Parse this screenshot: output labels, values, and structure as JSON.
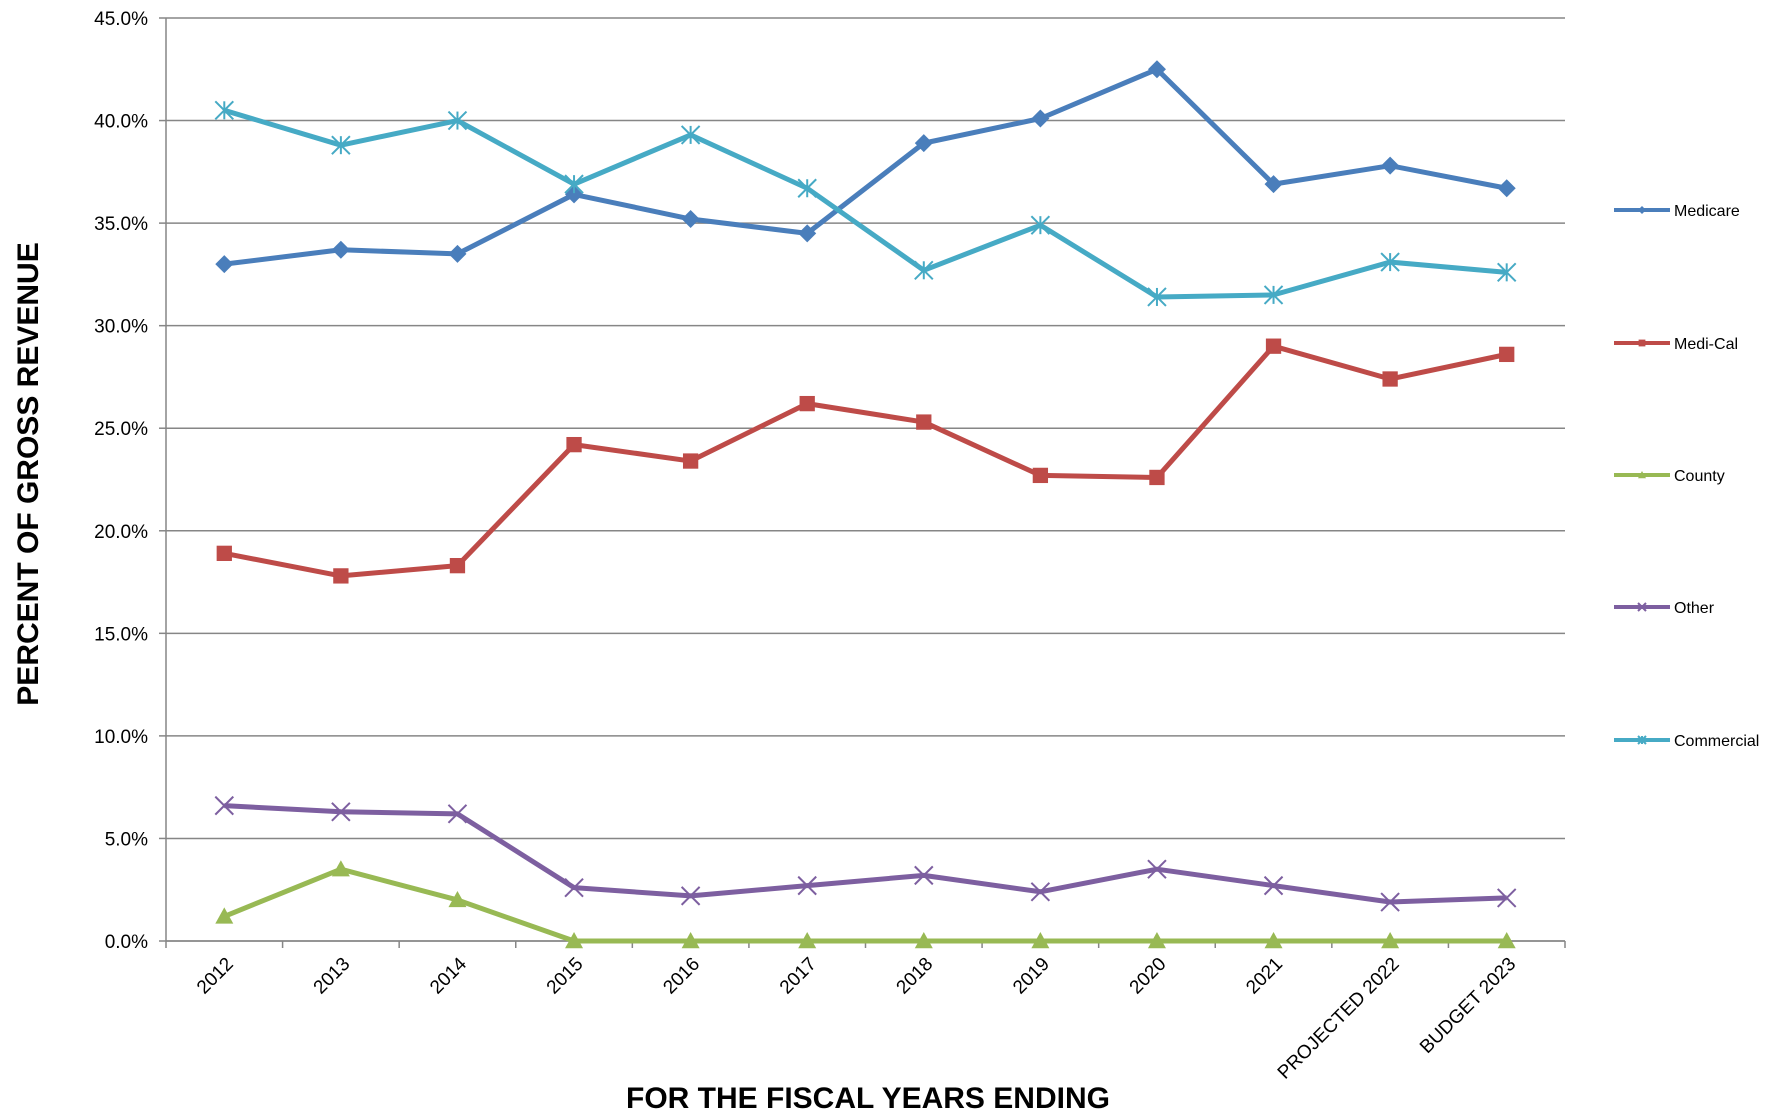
{
  "chart_data": {
    "type": "line",
    "title": "",
    "xlabel": "FOR THE FISCAL YEARS ENDING",
    "ylabel": "PERCENT OF GROSS REVENUE",
    "ylim": [
      0,
      45
    ],
    "y_ticks": [
      "0.0%",
      "5.0%",
      "10.0%",
      "15.0%",
      "20.0%",
      "25.0%",
      "30.0%",
      "35.0%",
      "40.0%",
      "45.0%"
    ],
    "grid": true,
    "legend_position": "right",
    "categories": [
      "2012",
      "2013",
      "2014",
      "2015",
      "2016",
      "2017",
      "2018",
      "2019",
      "2020",
      "2021",
      "PROJECTED 2022",
      "BUDGET 2023"
    ],
    "series": [
      {
        "name": "Medicare",
        "color": "#4a7ebb",
        "marker": "diamond",
        "values": [
          33.0,
          33.7,
          33.5,
          36.4,
          35.2,
          34.5,
          38.9,
          40.1,
          42.5,
          36.9,
          37.8,
          36.7
        ]
      },
      {
        "name": "Medi-Cal",
        "color": "#be4b48",
        "marker": "square",
        "values": [
          18.9,
          17.8,
          18.3,
          24.2,
          23.4,
          26.2,
          25.3,
          22.7,
          22.6,
          29.0,
          27.4,
          28.6
        ]
      },
      {
        "name": "County",
        "color": "#98b954",
        "marker": "triangle",
        "values": [
          1.2,
          3.5,
          2.0,
          0.0,
          0.0,
          0.0,
          0.0,
          0.0,
          0.0,
          0.0,
          0.0,
          0.0
        ]
      },
      {
        "name": "Other",
        "color": "#7d5fa0",
        "marker": "x",
        "values": [
          6.6,
          6.3,
          6.2,
          2.6,
          2.2,
          2.7,
          3.2,
          2.4,
          3.5,
          2.7,
          1.9,
          2.1
        ]
      },
      {
        "name": "Commercial",
        "color": "#46aac5",
        "marker": "star",
        "values": [
          40.5,
          38.8,
          40.0,
          36.9,
          39.3,
          36.7,
          32.7,
          34.9,
          31.4,
          31.5,
          33.1,
          32.6
        ]
      }
    ]
  }
}
